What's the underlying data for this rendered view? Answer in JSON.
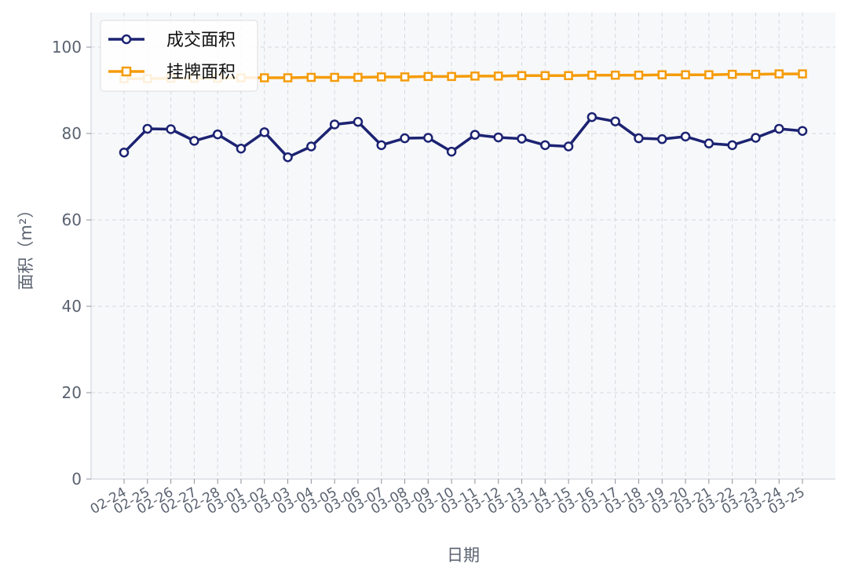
{
  "chart_data": {
    "type": "line",
    "title": "",
    "xlabel": "日期",
    "ylabel": "面积（m²）",
    "ylim": [
      0,
      108
    ],
    "yticks": [
      0,
      20,
      40,
      60,
      80,
      100
    ],
    "grid": true,
    "legend_position": "top-left",
    "categories": [
      "02-24",
      "02-25",
      "02-26",
      "02-27",
      "02-28",
      "03-01",
      "03-02",
      "03-03",
      "03-04",
      "03-05",
      "03-06",
      "03-07",
      "03-08",
      "03-09",
      "03-10",
      "03-11",
      "03-12",
      "03-13",
      "03-14",
      "03-15",
      "03-16",
      "03-17",
      "03-18",
      "03-19",
      "03-20",
      "03-21",
      "03-22",
      "03-23",
      "03-24",
      "03-25"
    ],
    "series": [
      {
        "name": "成交面积",
        "color": "#1c2372",
        "marker": "circle",
        "values": [
          75.6,
          81.1,
          81.0,
          78.3,
          79.8,
          76.5,
          80.3,
          74.5,
          77.0,
          82.1,
          82.7,
          77.3,
          78.9,
          79.0,
          75.8,
          79.7,
          79.1,
          78.8,
          77.3,
          77.0,
          83.8,
          82.8,
          78.9,
          78.7,
          79.3,
          77.7,
          77.3,
          79.0,
          81.1,
          80.6
        ]
      },
      {
        "name": "挂牌面积",
        "color": "#f59c0b",
        "marker": "square",
        "values": [
          92.7,
          92.7,
          92.8,
          92.8,
          92.8,
          92.9,
          92.9,
          92.9,
          93.0,
          93.0,
          93.0,
          93.1,
          93.1,
          93.2,
          93.2,
          93.3,
          93.3,
          93.4,
          93.4,
          93.4,
          93.5,
          93.5,
          93.5,
          93.6,
          93.6,
          93.6,
          93.7,
          93.7,
          93.8,
          93.8
        ]
      }
    ]
  }
}
